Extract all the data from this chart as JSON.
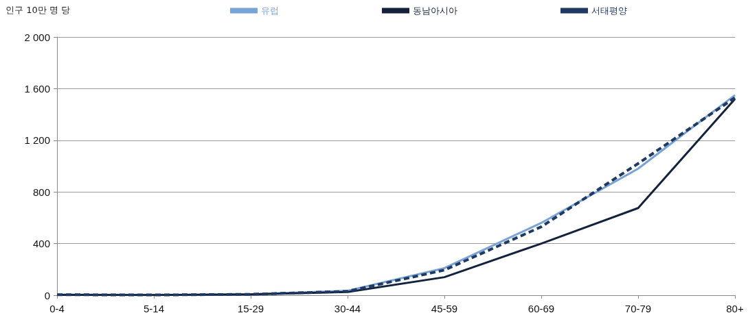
{
  "chart_data": {
    "type": "line",
    "ylabel": "인구 10만 명 당",
    "categories": [
      "0-4",
      "5-14",
      "15-29",
      "30-44",
      "45-59",
      "60-69",
      "70-79",
      "80+"
    ],
    "series": [
      {
        "name": "유럽",
        "color": "#79a2d5",
        "line_style": "solid",
        "values": [
          5,
          2,
          8,
          35,
          210,
          560,
          980,
          1550
        ]
      },
      {
        "name": "동남아시아",
        "color": "#14223c",
        "line_style": "solid",
        "values": [
          3,
          1,
          6,
          25,
          140,
          400,
          675,
          1520
        ]
      },
      {
        "name": "서태평양",
        "color": "#1f3a62",
        "line_style": "dashed",
        "values": [
          4,
          2,
          7,
          30,
          195,
          530,
          1020,
          1530
        ]
      }
    ],
    "ylim": [
      0,
      2000
    ],
    "yticks": [
      {
        "value": 0,
        "label": "0"
      },
      {
        "value": 400,
        "label": "400"
      },
      {
        "value": 800,
        "label": "800"
      },
      {
        "value": 1200,
        "label": "1 200"
      },
      {
        "value": 1600,
        "label": "1 600"
      },
      {
        "value": 2000,
        "label": "2 000"
      }
    ],
    "grid": "y",
    "legend": "top",
    "marker": "none"
  }
}
